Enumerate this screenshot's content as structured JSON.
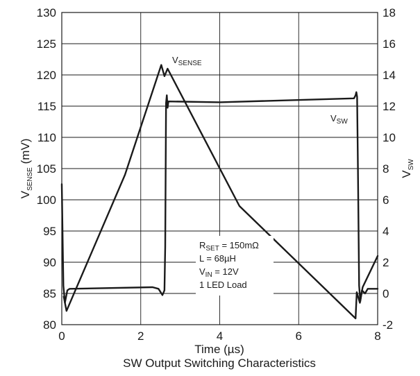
{
  "chart_data": {
    "type": "line",
    "title": "SW Output Switching Characteristics",
    "xlabel": "Time (µs)",
    "ylabel": {
      "main": "V",
      "sub": "SENSE",
      "suffix": " (mV)"
    },
    "y2label": {
      "main": "V",
      "sub": "SW"
    },
    "xlim": [
      0,
      8
    ],
    "ylim": [
      80,
      130
    ],
    "y2lim": [
      -2,
      18
    ],
    "x_ticks": [
      "0",
      "2",
      "4",
      "6",
      "8"
    ],
    "y_ticks": [
      "130",
      "125",
      "120",
      "115",
      "110",
      "105",
      "100",
      "95",
      "90",
      "85",
      "80"
    ],
    "y2_ticks": [
      "18",
      "16",
      "14",
      "12",
      "10",
      "8",
      "6",
      "4",
      "2",
      "0",
      "-2"
    ],
    "grid": true,
    "series": [
      {
        "name": "V_SENSE",
        "axis": "left",
        "label": {
          "main": "V",
          "sub": "SENSE"
        },
        "points": [
          [
            0.05,
            84.5
          ],
          [
            0.12,
            82.2
          ],
          [
            1.6,
            104.0
          ],
          [
            2.52,
            121.6
          ],
          [
            2.6,
            119.8
          ],
          [
            2.68,
            121.0
          ],
          [
            4.5,
            99.0
          ],
          [
            7.44,
            81.0
          ],
          [
            7.47,
            85.2
          ],
          [
            7.55,
            83.5
          ],
          [
            7.62,
            86.0
          ],
          [
            8.0,
            91.0
          ]
        ]
      },
      {
        "name": "V_SW",
        "axis": "right",
        "label": {
          "main": "V",
          "sub": "SW"
        },
        "points": [
          [
            0.0,
            7.0
          ],
          [
            0.04,
            0.5
          ],
          [
            0.08,
            -0.6
          ],
          [
            0.14,
            0.2
          ],
          [
            0.2,
            0.3
          ],
          [
            2.3,
            0.4
          ],
          [
            2.45,
            0.3
          ],
          [
            2.55,
            -0.1
          ],
          [
            2.6,
            0.2
          ],
          [
            2.62,
            3.0
          ],
          [
            2.64,
            12.2
          ],
          [
            2.66,
            12.7
          ],
          [
            2.68,
            11.9
          ],
          [
            2.7,
            12.3
          ],
          [
            4.0,
            12.25
          ],
          [
            7.4,
            12.5
          ],
          [
            7.44,
            12.7
          ],
          [
            7.46,
            12.9
          ],
          [
            7.48,
            12.6
          ],
          [
            7.5,
            8.0
          ],
          [
            7.53,
            0.5
          ],
          [
            7.56,
            -0.5
          ],
          [
            7.6,
            0.2
          ],
          [
            7.68,
            0.0
          ],
          [
            7.75,
            0.3
          ],
          [
            8.0,
            0.3
          ]
        ]
      }
    ],
    "annotations": [
      {
        "main": "R",
        "sub": "SET",
        "rest": " = 150mΩ"
      },
      {
        "main": "L = 68µH",
        "sub": "",
        "rest": ""
      },
      {
        "main": "V",
        "sub": "IN",
        "rest": " = 12V"
      },
      {
        "main": "1 LED Load",
        "sub": "",
        "rest": ""
      }
    ]
  }
}
